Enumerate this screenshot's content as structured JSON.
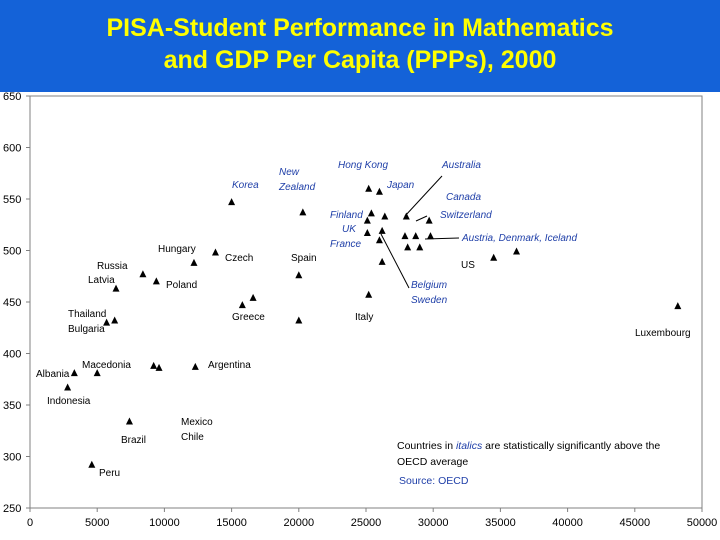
{
  "title_line1": "PISA-Student Performance in Mathematics",
  "title_line2": "and GDP Per Capita (PPPs), 2000",
  "chart_data": {
    "type": "scatter",
    "xlim": [
      0,
      50000
    ],
    "ylim": [
      250,
      650
    ],
    "x_ticks": [
      0,
      5000,
      10000,
      15000,
      20000,
      25000,
      30000,
      35000,
      40000,
      45000,
      50000
    ],
    "y_ticks": [
      250,
      300,
      350,
      400,
      450,
      500,
      550,
      600,
      650
    ],
    "grid": false,
    "points": [
      {
        "x": 15000,
        "y": 547
      },
      {
        "x": 20300,
        "y": 537
      },
      {
        "x": 25200,
        "y": 560
      },
      {
        "x": 26000,
        "y": 557
      },
      {
        "x": 25400,
        "y": 536
      },
      {
        "x": 26400,
        "y": 533
      },
      {
        "x": 25100,
        "y": 529
      },
      {
        "x": 28000,
        "y": 533
      },
      {
        "x": 29700,
        "y": 529
      },
      {
        "x": 25100,
        "y": 517
      },
      {
        "x": 26200,
        "y": 519
      },
      {
        "x": 26000,
        "y": 510
      },
      {
        "x": 27900,
        "y": 514
      },
      {
        "x": 28700,
        "y": 514
      },
      {
        "x": 29800,
        "y": 514
      },
      {
        "x": 28100,
        "y": 503
      },
      {
        "x": 29000,
        "y": 503
      },
      {
        "x": 36200,
        "y": 499
      },
      {
        "x": 34500,
        "y": 493
      },
      {
        "x": 13800,
        "y": 498
      },
      {
        "x": 12200,
        "y": 488
      },
      {
        "x": 20000,
        "y": 476
      },
      {
        "x": 26200,
        "y": 489
      },
      {
        "x": 8400,
        "y": 477
      },
      {
        "x": 6400,
        "y": 463
      },
      {
        "x": 9400,
        "y": 470
      },
      {
        "x": 25200,
        "y": 457
      },
      {
        "x": 16600,
        "y": 454
      },
      {
        "x": 15800,
        "y": 447
      },
      {
        "x": 20000,
        "y": 432
      },
      {
        "x": 48200,
        "y": 446
      },
      {
        "x": 5700,
        "y": 430
      },
      {
        "x": 6300,
        "y": 432
      },
      {
        "x": 12300,
        "y": 387
      },
      {
        "x": 9200,
        "y": 388
      },
      {
        "x": 9600,
        "y": 386
      },
      {
        "x": 3300,
        "y": 381
      },
      {
        "x": 5000,
        "y": 381
      },
      {
        "x": 2800,
        "y": 367
      },
      {
        "x": 7400,
        "y": 334
      },
      {
        "x": 4600,
        "y": 292
      }
    ],
    "annotations": [
      {
        "text": "Korea",
        "style": "italic"
      },
      {
        "text": "New",
        "style": "italic"
      },
      {
        "text": "Zealand",
        "style": "italic"
      },
      {
        "text": "Hong Kong",
        "style": "italic"
      },
      {
        "text": "Australia",
        "style": "italic"
      },
      {
        "text": "Japan",
        "style": "italic"
      },
      {
        "text": "Canada",
        "style": "italic"
      },
      {
        "text": "Finland",
        "style": "italic"
      },
      {
        "text": "Switzerland",
        "style": "italic"
      },
      {
        "text": "UK",
        "style": "italic"
      },
      {
        "text": "France",
        "style": "italic"
      },
      {
        "text": "Austria, Denmark, Iceland",
        "style": "italic"
      },
      {
        "text": "Hungary",
        "style": "normal"
      },
      {
        "text": "Czech",
        "style": "normal"
      },
      {
        "text": "Spain",
        "style": "normal"
      },
      {
        "text": "US",
        "style": "normal"
      },
      {
        "text": "Russia",
        "style": "normal"
      },
      {
        "text": "Latvia",
        "style": "normal"
      },
      {
        "text": "Poland",
        "style": "normal"
      },
      {
        "text": "Belgium",
        "style": "italic"
      },
      {
        "text": "Sweden",
        "style": "italic"
      },
      {
        "text": "Thailand",
        "style": "normal"
      },
      {
        "text": "Bulgaria",
        "style": "normal"
      },
      {
        "text": "Greece",
        "style": "normal"
      },
      {
        "text": "Italy",
        "style": "normal"
      },
      {
        "text": "Luxembourg",
        "style": "normal"
      },
      {
        "text": "Macedonia",
        "style": "normal"
      },
      {
        "text": "Argentina",
        "style": "normal"
      },
      {
        "text": "Albania",
        "style": "normal"
      },
      {
        "text": "Indonesia",
        "style": "normal"
      },
      {
        "text": "Mexico",
        "style": "normal"
      },
      {
        "text": "Chile",
        "style": "normal"
      },
      {
        "text": "Brazil",
        "style": "normal"
      },
      {
        "text": "Peru",
        "style": "normal"
      }
    ],
    "note_line1_a": "Countries in ",
    "note_line1_b": "italics",
    "note_line1_c": " are statistically significantly above the",
    "note_line2": "OECD average",
    "source": "Source: OECD"
  },
  "colors": {
    "title_bg": "#1462d8",
    "title_text": "#ffff00",
    "italic_label": "#1f3fa8",
    "normal_label": "#000000",
    "marker": "#000000"
  }
}
